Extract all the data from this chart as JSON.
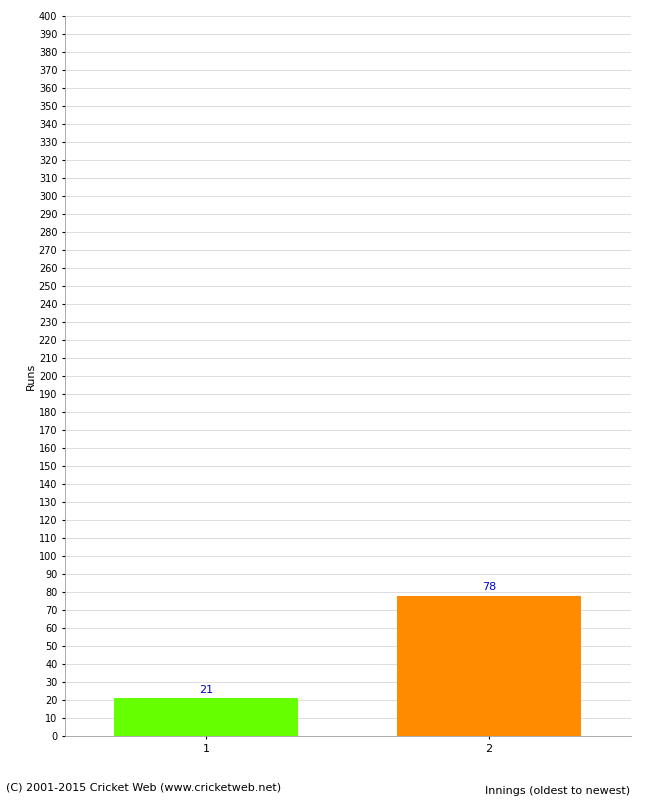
{
  "xlabel": "Innings (oldest to newest)",
  "ylabel": "Runs",
  "categories": [
    "1",
    "2"
  ],
  "values": [
    21,
    78
  ],
  "bar_colors": [
    "#66ff00",
    "#ff8c00"
  ],
  "ylim": [
    0,
    400
  ],
  "ytick_step": 10,
  "value_label_color": "#0000cc",
  "footer": "(C) 2001-2015 Cricket Web (www.cricketweb.net)",
  "background_color": "#ffffff",
  "grid_color": "#d0d0d0"
}
